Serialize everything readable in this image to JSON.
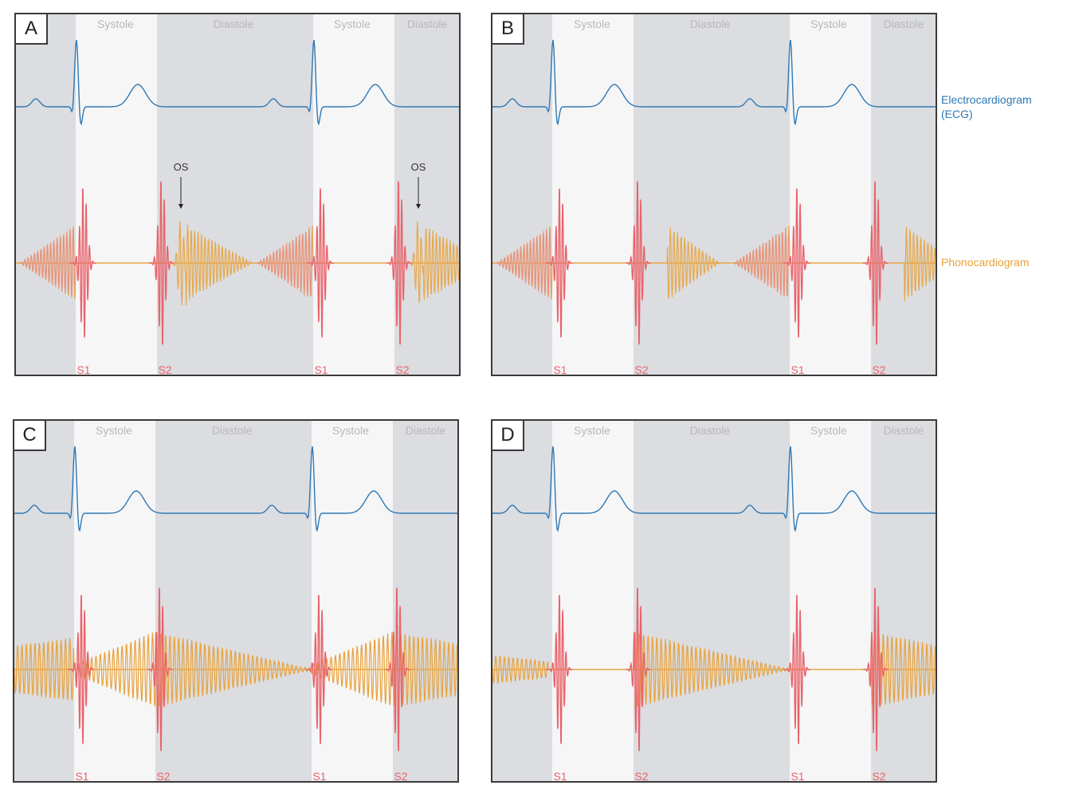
{
  "panels": [
    {
      "label": "A",
      "murmur": "A"
    },
    {
      "label": "B",
      "murmur": "B"
    },
    {
      "label": "C",
      "murmur": "C"
    },
    {
      "label": "D",
      "murmur": "D"
    }
  ],
  "phases": {
    "systole": "Systole",
    "diastole": "Diastole"
  },
  "sounds": {
    "s1": "S1",
    "s2": "S2",
    "os": "OS"
  },
  "legend": {
    "ecg": "Electrocardiogram (ECG)",
    "pcg": "Phonocardiogram"
  },
  "colors": {
    "ecg": "#2e78b4",
    "pcg": "#e8a23c",
    "heart_sound": "#e8636b",
    "systole_bg": "#f6f6f7",
    "diastole_bg": "#dcdde0",
    "border": "#3a3a3a"
  }
}
